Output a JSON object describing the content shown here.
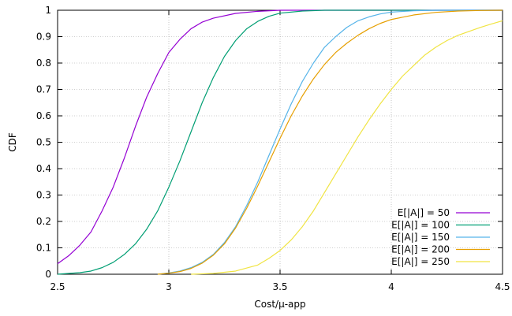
{
  "chart_data": {
    "type": "line",
    "title": "",
    "xlabel": "Cost/μ-app",
    "ylabel": "CDF",
    "xlim": [
      2.5,
      4.5
    ],
    "ylim": [
      0,
      1
    ],
    "xticks": [
      "2.5",
      "3",
      "3.5",
      "4",
      "4.5"
    ],
    "yticks": [
      "0",
      "0.1",
      "0.2",
      "0.3",
      "0.4",
      "0.5",
      "0.6",
      "0.7",
      "0.8",
      "0.9",
      "1"
    ],
    "grid": true,
    "legend_position": "bottom-right",
    "series": [
      {
        "name": "E[|A|] = 50",
        "color": "#9400d3",
        "points": [
          [
            2.5,
            0.04
          ],
          [
            2.55,
            0.07
          ],
          [
            2.6,
            0.11
          ],
          [
            2.65,
            0.16
          ],
          [
            2.7,
            0.24
          ],
          [
            2.75,
            0.33
          ],
          [
            2.8,
            0.44
          ],
          [
            2.85,
            0.56
          ],
          [
            2.9,
            0.67
          ],
          [
            2.95,
            0.76
          ],
          [
            3.0,
            0.84
          ],
          [
            3.05,
            0.89
          ],
          [
            3.1,
            0.93
          ],
          [
            3.15,
            0.955
          ],
          [
            3.2,
            0.97
          ],
          [
            3.3,
            0.988
          ],
          [
            3.4,
            0.996
          ],
          [
            3.5,
            1.0
          ],
          [
            4.5,
            1.0
          ]
        ]
      },
      {
        "name": "E[|A|] = 100",
        "color": "#009e73",
        "points": [
          [
            2.5,
            0.0
          ],
          [
            2.55,
            0.003
          ],
          [
            2.6,
            0.006
          ],
          [
            2.65,
            0.012
          ],
          [
            2.7,
            0.025
          ],
          [
            2.75,
            0.045
          ],
          [
            2.8,
            0.075
          ],
          [
            2.85,
            0.115
          ],
          [
            2.9,
            0.17
          ],
          [
            2.95,
            0.24
          ],
          [
            3.0,
            0.33
          ],
          [
            3.05,
            0.43
          ],
          [
            3.1,
            0.54
          ],
          [
            3.15,
            0.65
          ],
          [
            3.2,
            0.745
          ],
          [
            3.25,
            0.825
          ],
          [
            3.3,
            0.885
          ],
          [
            3.35,
            0.93
          ],
          [
            3.4,
            0.958
          ],
          [
            3.45,
            0.977
          ],
          [
            3.5,
            0.989
          ],
          [
            3.6,
            0.997
          ],
          [
            3.7,
            1.0
          ],
          [
            4.5,
            1.0
          ]
        ]
      },
      {
        "name": "E[|A|] = 150",
        "color": "#56b4e9",
        "points": [
          [
            2.95,
            0.0
          ],
          [
            3.0,
            0.005
          ],
          [
            3.05,
            0.012
          ],
          [
            3.1,
            0.025
          ],
          [
            3.15,
            0.045
          ],
          [
            3.2,
            0.075
          ],
          [
            3.25,
            0.12
          ],
          [
            3.3,
            0.18
          ],
          [
            3.35,
            0.26
          ],
          [
            3.4,
            0.35
          ],
          [
            3.45,
            0.45
          ],
          [
            3.5,
            0.55
          ],
          [
            3.55,
            0.645
          ],
          [
            3.6,
            0.73
          ],
          [
            3.65,
            0.8
          ],
          [
            3.7,
            0.86
          ],
          [
            3.75,
            0.9
          ],
          [
            3.8,
            0.935
          ],
          [
            3.85,
            0.96
          ],
          [
            3.9,
            0.975
          ],
          [
            3.95,
            0.986
          ],
          [
            4.0,
            0.993
          ],
          [
            4.1,
            0.998
          ],
          [
            4.2,
            1.0
          ],
          [
            4.5,
            1.0
          ]
        ]
      },
      {
        "name": "E[|A|] = 200",
        "color": "#e69f00",
        "points": [
          [
            2.95,
            0.0
          ],
          [
            3.0,
            0.004
          ],
          [
            3.05,
            0.01
          ],
          [
            3.1,
            0.022
          ],
          [
            3.15,
            0.042
          ],
          [
            3.2,
            0.072
          ],
          [
            3.25,
            0.115
          ],
          [
            3.3,
            0.175
          ],
          [
            3.35,
            0.25
          ],
          [
            3.4,
            0.335
          ],
          [
            3.45,
            0.425
          ],
          [
            3.5,
            0.515
          ],
          [
            3.55,
            0.6
          ],
          [
            3.6,
            0.675
          ],
          [
            3.65,
            0.74
          ],
          [
            3.7,
            0.795
          ],
          [
            3.75,
            0.84
          ],
          [
            3.8,
            0.875
          ],
          [
            3.85,
            0.905
          ],
          [
            3.9,
            0.93
          ],
          [
            3.95,
            0.95
          ],
          [
            4.0,
            0.965
          ],
          [
            4.1,
            0.982
          ],
          [
            4.2,
            0.992
          ],
          [
            4.3,
            0.997
          ],
          [
            4.4,
            0.999
          ],
          [
            4.5,
            1.0
          ]
        ]
      },
      {
        "name": "E[|A|] = 250",
        "color": "#f0e442",
        "points": [
          [
            3.1,
            0.0
          ],
          [
            3.2,
            0.003
          ],
          [
            3.3,
            0.012
          ],
          [
            3.4,
            0.035
          ],
          [
            3.45,
            0.06
          ],
          [
            3.5,
            0.09
          ],
          [
            3.55,
            0.13
          ],
          [
            3.6,
            0.18
          ],
          [
            3.65,
            0.24
          ],
          [
            3.7,
            0.31
          ],
          [
            3.75,
            0.38
          ],
          [
            3.8,
            0.45
          ],
          [
            3.85,
            0.52
          ],
          [
            3.9,
            0.585
          ],
          [
            3.95,
            0.645
          ],
          [
            4.0,
            0.7
          ],
          [
            4.05,
            0.75
          ],
          [
            4.1,
            0.79
          ],
          [
            4.15,
            0.83
          ],
          [
            4.2,
            0.86
          ],
          [
            4.25,
            0.885
          ],
          [
            4.3,
            0.905
          ],
          [
            4.35,
            0.92
          ],
          [
            4.4,
            0.935
          ],
          [
            4.45,
            0.948
          ],
          [
            4.5,
            0.96
          ]
        ]
      }
    ]
  }
}
